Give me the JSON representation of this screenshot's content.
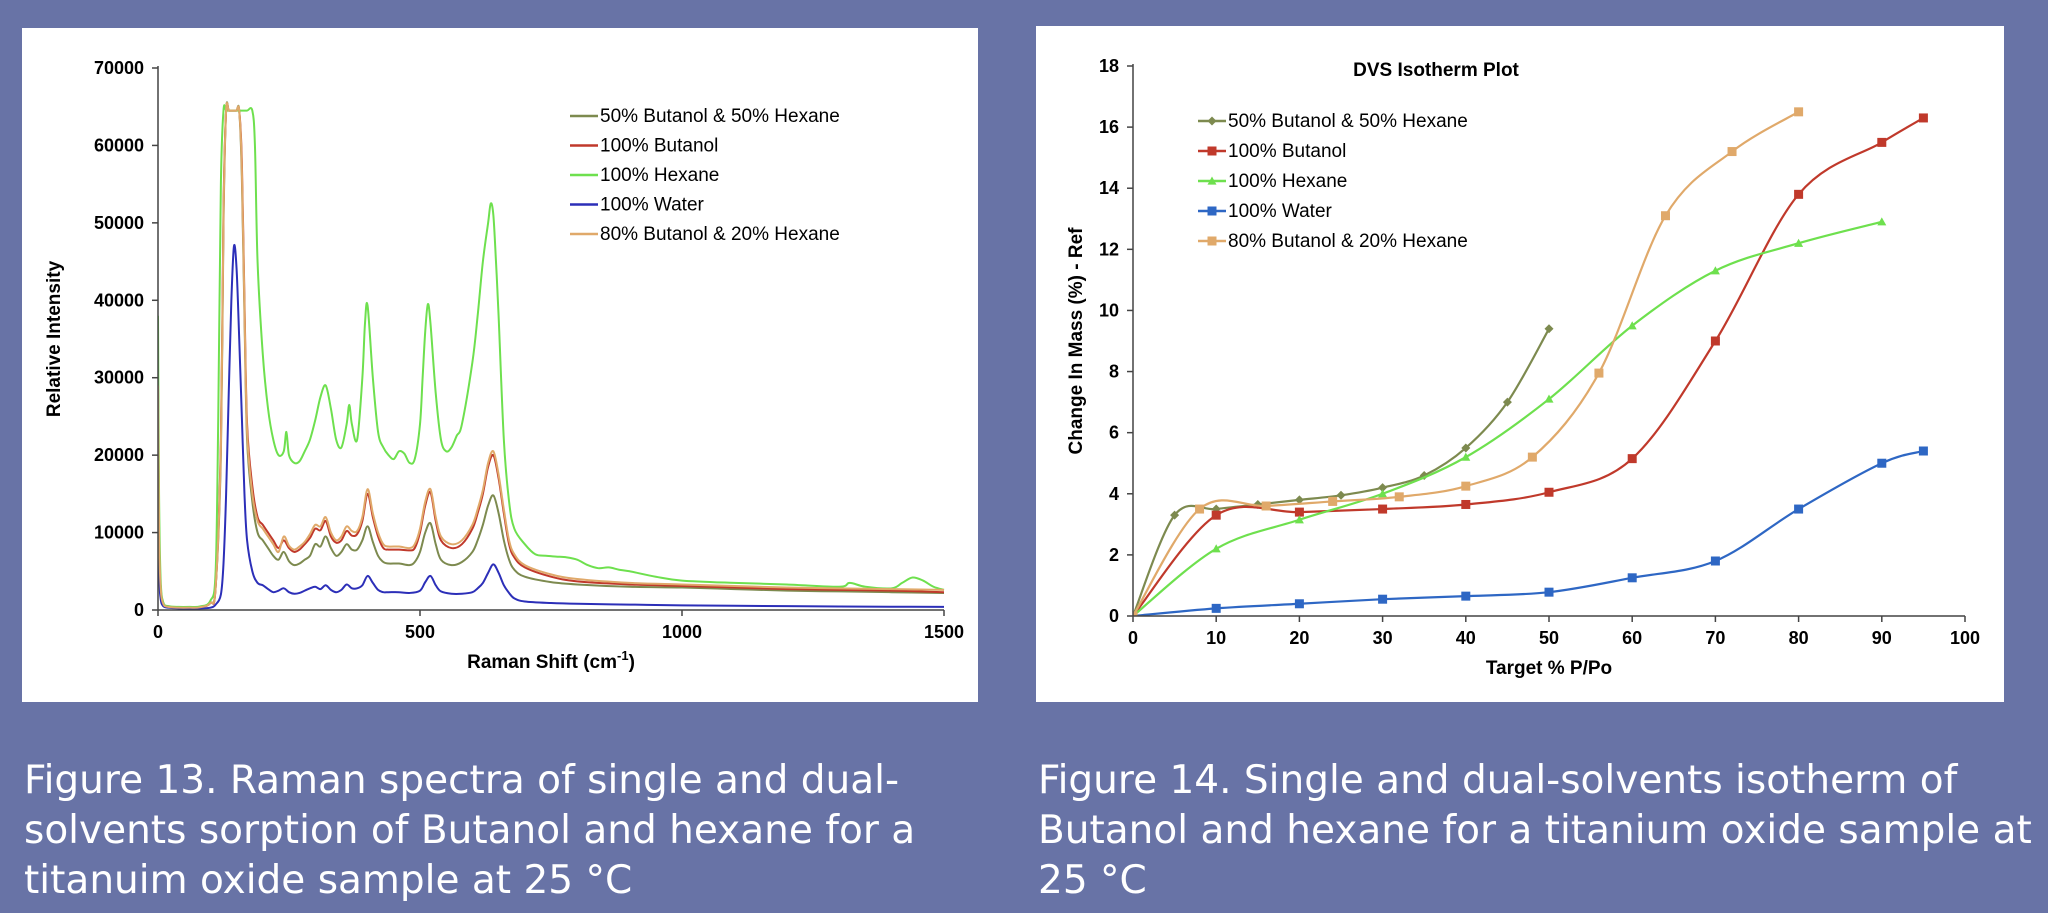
{
  "chart_data": [
    {
      "type": "line",
      "title": "",
      "xlabel": "Raman Shift (cm",
      "xlabel_sup": "-1",
      "xlabel_tail": ")",
      "ylabel": "Relative Intensity",
      "xlim": [
        0,
        1500
      ],
      "ylim": [
        0,
        70000
      ],
      "xticks": [
        "0",
        "500",
        "1000",
        "1500"
      ],
      "yticks": [
        "0",
        "10000",
        "20000",
        "30000",
        "40000",
        "50000",
        "60000",
        "70000"
      ],
      "grid": false,
      "legend_position": "top-right",
      "series": [
        {
          "name": "50% Butanol & 50% Hexane",
          "color": "#7d8a4f",
          "x": [
            0,
            2,
            5,
            10,
            20,
            40,
            60,
            80,
            100,
            110,
            120,
            125,
            130,
            135,
            140,
            145,
            150,
            155,
            160,
            165,
            170,
            180,
            190,
            200,
            210,
            220,
            230,
            240,
            250,
            260,
            270,
            280,
            290,
            300,
            310,
            320,
            330,
            340,
            350,
            360,
            370,
            380,
            390,
            400,
            410,
            420,
            430,
            440,
            460,
            480,
            490,
            500,
            510,
            520,
            530,
            540,
            560,
            580,
            600,
            610,
            620,
            630,
            640,
            650,
            660,
            670,
            680,
            700,
            750,
            800,
            900,
            1000,
            1100,
            1200,
            1300,
            1400,
            1500
          ],
          "y": [
            28000,
            10000,
            3000,
            800,
            400,
            300,
            300,
            350,
            900,
            3000,
            20000,
            50000,
            64500,
            64500,
            64500,
            64500,
            64500,
            64500,
            56000,
            38000,
            22000,
            14000,
            10000,
            9000,
            8000,
            7000,
            6500,
            7500,
            6300,
            5800,
            6000,
            6500,
            7000,
            8500,
            8200,
            9500,
            8000,
            7000,
            7500,
            8500,
            7800,
            7800,
            9000,
            10800,
            8800,
            7000,
            6200,
            6000,
            6000,
            5800,
            6200,
            7500,
            10000,
            11200,
            8500,
            6500,
            5800,
            6200,
            7500,
            9000,
            11000,
            13500,
            14800,
            12500,
            9000,
            6500,
            5200,
            4300,
            3600,
            3300,
            3000,
            2900,
            2700,
            2500,
            2400,
            2300,
            2200
          ]
        },
        {
          "name": "100% Butanol",
          "color": "#c0392b",
          "x": [
            0,
            2,
            5,
            10,
            20,
            40,
            60,
            80,
            100,
            110,
            120,
            125,
            130,
            135,
            140,
            145,
            150,
            155,
            160,
            165,
            170,
            180,
            190,
            200,
            210,
            220,
            230,
            240,
            250,
            260,
            270,
            280,
            290,
            300,
            310,
            320,
            330,
            340,
            350,
            360,
            370,
            380,
            390,
            400,
            410,
            420,
            430,
            440,
            460,
            480,
            490,
            500,
            510,
            520,
            530,
            540,
            560,
            580,
            600,
            610,
            620,
            630,
            640,
            650,
            660,
            670,
            680,
            700,
            750,
            800,
            900,
            1000,
            1100,
            1200,
            1300,
            1400,
            1500
          ],
          "y": [
            30000,
            10000,
            3000,
            800,
            400,
            300,
            300,
            350,
            900,
            3000,
            22000,
            52000,
            64500,
            64500,
            64500,
            64500,
            64500,
            64500,
            58000,
            40000,
            24000,
            16000,
            12000,
            11000,
            10000,
            9000,
            8000,
            9000,
            8000,
            7500,
            7800,
            8500,
            9300,
            10500,
            10300,
            11500,
            9500,
            8700,
            9000,
            10200,
            9600,
            9800,
            11500,
            15000,
            12000,
            9500,
            8000,
            7800,
            7800,
            7700,
            8000,
            10000,
            13500,
            15200,
            11500,
            9000,
            8000,
            8500,
            10500,
            12500,
            15000,
            18500,
            20000,
            17000,
            12500,
            8500,
            6800,
            5500,
            4300,
            3700,
            3300,
            3100,
            2900,
            2700,
            2600,
            2500,
            2300
          ]
        },
        {
          "name": "100% Hexane",
          "color": "#6ee04e",
          "x": [
            0,
            2,
            5,
            10,
            20,
            40,
            60,
            80,
            100,
            110,
            115,
            120,
            125,
            130,
            135,
            140,
            150,
            160,
            170,
            180,
            185,
            190,
            200,
            210,
            220,
            230,
            240,
            245,
            250,
            260,
            270,
            280,
            290,
            300,
            310,
            320,
            330,
            340,
            350,
            360,
            365,
            370,
            380,
            390,
            395,
            400,
            410,
            420,
            430,
            440,
            450,
            460,
            470,
            480,
            490,
            500,
            505,
            510,
            515,
            520,
            530,
            540,
            550,
            560,
            570,
            580,
            600,
            610,
            620,
            630,
            635,
            640,
            645,
            650,
            660,
            670,
            680,
            700,
            720,
            740,
            760,
            780,
            800,
            820,
            840,
            860,
            880,
            900,
            950,
            1000,
            1100,
            1200,
            1300,
            1320,
            1350,
            1400,
            1420,
            1440,
            1460,
            1480,
            1500
          ],
          "y": [
            38000,
            15000,
            4000,
            1000,
            500,
            400,
            400,
            450,
            1200,
            5000,
            25000,
            55000,
            64500,
            64500,
            64500,
            64500,
            64500,
            64500,
            64500,
            64500,
            60000,
            45000,
            33000,
            26000,
            22000,
            20000,
            20500,
            23000,
            20000,
            19000,
            19200,
            20500,
            22000,
            24500,
            27500,
            29000,
            26000,
            22000,
            21000,
            24000,
            26500,
            24000,
            22000,
            30000,
            37000,
            39300,
            30000,
            23000,
            21000,
            20000,
            19500,
            20500,
            20200,
            19000,
            19500,
            24000,
            30000,
            36000,
            39500,
            37000,
            28000,
            22000,
            20500,
            21000,
            22500,
            24000,
            32000,
            38000,
            45000,
            50000,
            52500,
            51000,
            45000,
            38000,
            22000,
            14000,
            10500,
            8500,
            7200,
            7000,
            6900,
            6800,
            6500,
            5800,
            5400,
            5500,
            5200,
            5000,
            4300,
            3800,
            3500,
            3300,
            3000,
            3500,
            3000,
            2800,
            3500,
            4200,
            3800,
            3000,
            2600
          ]
        },
        {
          "name": "100% Water",
          "color": "#2c2fb8",
          "x": [
            0,
            2,
            5,
            10,
            20,
            40,
            60,
            80,
            100,
            110,
            120,
            125,
            130,
            135,
            140,
            145,
            150,
            155,
            160,
            165,
            170,
            180,
            190,
            200,
            210,
            220,
            230,
            240,
            250,
            260,
            270,
            280,
            290,
            300,
            310,
            320,
            330,
            340,
            350,
            360,
            370,
            380,
            390,
            400,
            410,
            420,
            430,
            440,
            460,
            480,
            500,
            510,
            520,
            530,
            540,
            560,
            580,
            600,
            610,
            620,
            630,
            640,
            650,
            660,
            670,
            680,
            700,
            750,
            800,
            900,
            1000,
            1100,
            1200,
            1300,
            1400,
            1500
          ],
          "y": [
            18000,
            5000,
            1500,
            500,
            300,
            200,
            200,
            200,
            300,
            700,
            2000,
            6000,
            15000,
            28000,
            40000,
            47000,
            44000,
            35000,
            25000,
            15000,
            9000,
            5000,
            3500,
            3200,
            2700,
            2300,
            2500,
            2800,
            2300,
            2100,
            2200,
            2500,
            2800,
            3000,
            2700,
            3200,
            2600,
            2300,
            2600,
            3300,
            2800,
            2800,
            3200,
            4400,
            3500,
            2600,
            2300,
            2300,
            2300,
            2200,
            2500,
            3600,
            4400,
            3200,
            2400,
            2100,
            2100,
            2300,
            2800,
            3500,
            4800,
            5900,
            4800,
            3200,
            2200,
            1500,
            1100,
            900,
            800,
            700,
            600,
            550,
            500,
            450,
            420,
            400
          ]
        },
        {
          "name": "80% Butanol & 20% Hexane",
          "color": "#e0a96a",
          "x": [
            0,
            2,
            5,
            10,
            20,
            40,
            60,
            80,
            100,
            110,
            120,
            125,
            130,
            135,
            140,
            145,
            150,
            155,
            160,
            165,
            170,
            180,
            190,
            200,
            210,
            220,
            230,
            240,
            250,
            260,
            270,
            280,
            290,
            300,
            310,
            320,
            330,
            340,
            350,
            360,
            370,
            380,
            390,
            400,
            410,
            420,
            430,
            440,
            460,
            480,
            490,
            500,
            510,
            520,
            530,
            540,
            560,
            580,
            600,
            610,
            620,
            630,
            640,
            650,
            660,
            670,
            680,
            700,
            750,
            800,
            900,
            1000,
            1100,
            1200,
            1300,
            1400,
            1500
          ],
          "y": [
            29000,
            10000,
            3000,
            800,
            400,
            300,
            300,
            350,
            900,
            3000,
            21000,
            51000,
            64500,
            64500,
            64500,
            64500,
            64500,
            64500,
            57000,
            39000,
            23000,
            15000,
            11500,
            10500,
            9500,
            8500,
            7500,
            9500,
            8300,
            7800,
            8200,
            8800,
            9800,
            11000,
            10800,
            12000,
            10000,
            9000,
            9500,
            10800,
            10200,
            10200,
            12000,
            15600,
            12500,
            10000,
            8500,
            8200,
            8200,
            8000,
            8500,
            10500,
            14000,
            15600,
            12000,
            9500,
            8500,
            9000,
            11000,
            13000,
            15500,
            19000,
            20500,
            17500,
            13000,
            9000,
            7200,
            5800,
            4600,
            4000,
            3500,
            3300,
            3100,
            2900,
            2800,
            2700,
            2600
          ]
        }
      ]
    },
    {
      "type": "line",
      "title": "DVS Isotherm Plot",
      "xlabel": "Target % P/Po",
      "ylabel": "Change In Mass (%) - Ref",
      "xlim": [
        0,
        100
      ],
      "ylim": [
        0,
        18
      ],
      "xticks": [
        "0",
        "10",
        "20",
        "30",
        "40",
        "50",
        "60",
        "70",
        "80",
        "90",
        "100"
      ],
      "yticks": [
        "0",
        "2",
        "4",
        "6",
        "8",
        "10",
        "12",
        "14",
        "16",
        "18"
      ],
      "grid": false,
      "legend_position": "top-left",
      "series": [
        {
          "name": "50% Butanol & 50% Hexane",
          "color": "#7d8a4f",
          "marker": "diamond",
          "x": [
            0,
            5,
            10,
            15,
            20,
            25,
            30,
            35,
            40,
            45,
            50
          ],
          "y": [
            0,
            3.3,
            3.5,
            3.65,
            3.8,
            3.95,
            4.2,
            4.6,
            5.5,
            7.0,
            9.4
          ]
        },
        {
          "name": "100% Butanol",
          "color": "#c0392b",
          "marker": "square",
          "x": [
            0,
            10,
            20,
            30,
            40,
            50,
            60,
            70,
            80,
            90,
            95
          ],
          "y": [
            0,
            3.3,
            3.4,
            3.5,
            3.65,
            4.05,
            5.15,
            9.0,
            13.8,
            15.5,
            16.3
          ]
        },
        {
          "name": "100% Hexane",
          "color": "#6ee04e",
          "marker": "triangle",
          "x": [
            0,
            10,
            20,
            30,
            40,
            50,
            60,
            70,
            80,
            90
          ],
          "y": [
            0,
            2.2,
            3.15,
            4.0,
            5.2,
            7.1,
            9.5,
            11.3,
            12.2,
            12.9
          ]
        },
        {
          "name": "100% Water",
          "color": "#2e67c4",
          "marker": "square",
          "x": [
            0,
            10,
            20,
            30,
            40,
            50,
            60,
            70,
            80,
            90,
            95
          ],
          "y": [
            0,
            0.25,
            0.4,
            0.55,
            0.65,
            0.78,
            1.25,
            1.8,
            3.5,
            5.0,
            5.4
          ]
        },
        {
          "name": "80% Butanol & 20% Hexane",
          "color": "#e0a96a",
          "marker": "square",
          "x": [
            0,
            8,
            16,
            24,
            32,
            40,
            48,
            56,
            64,
            72,
            80
          ],
          "y": [
            0,
            3.5,
            3.6,
            3.75,
            3.9,
            4.25,
            5.2,
            7.95,
            13.1,
            15.2,
            16.5
          ]
        }
      ]
    }
  ],
  "captions": {
    "left": "Figure 13. Raman spectra of single and dual-solvents sorption of Butanol and hexane for a titanuim oxide sample at 25 °C",
    "right": "Figure 14. Single and dual-solvents isotherm of Butanol and hexane for a titanium oxide sample at 25 °C"
  }
}
